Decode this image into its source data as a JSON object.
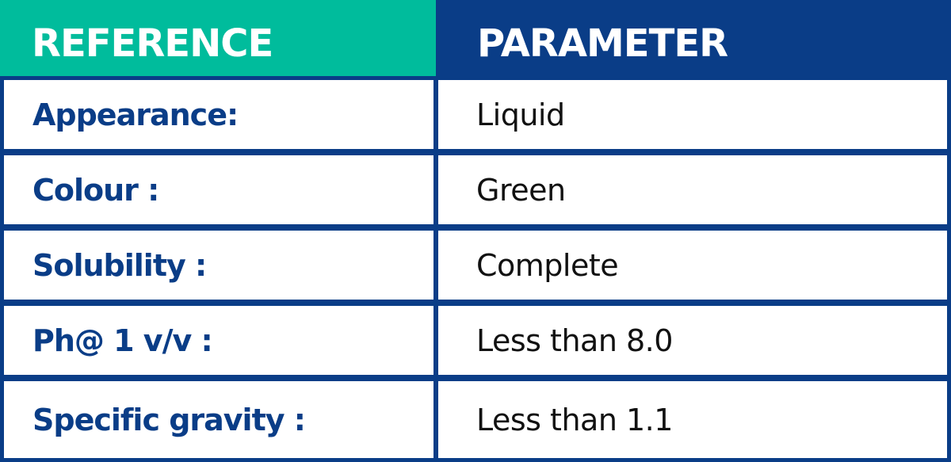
{
  "header": [
    "REFERENCE",
    "PARAMETER"
  ],
  "rows": [
    [
      "Appearance:",
      "Liquid"
    ],
    [
      "Colour :",
      "Green"
    ],
    [
      "Solubility :",
      "Complete"
    ],
    [
      "Ph@ 1 v/v :",
      "Less than 8.0"
    ],
    [
      "Specific gravity :",
      "Less than 1.1"
    ]
  ]
}
